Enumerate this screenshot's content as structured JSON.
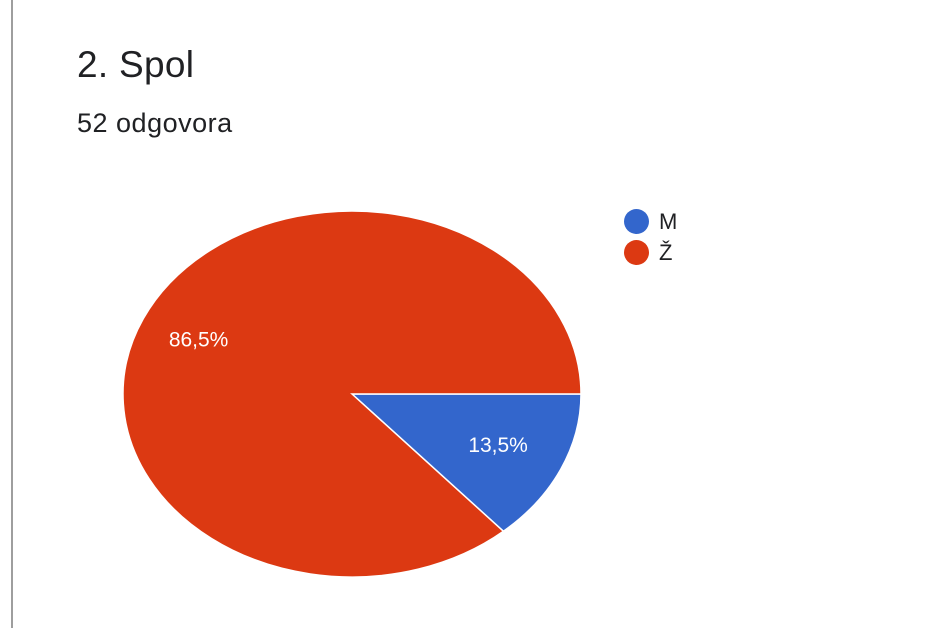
{
  "question": {
    "title": "2. Spol",
    "response_count": "52 odgovora"
  },
  "colors": {
    "blue": "#3366cc",
    "red": "#dc3912"
  },
  "chart_data": {
    "type": "pie",
    "slices": [
      {
        "label": "M",
        "value": 13.5,
        "display": "13,5%",
        "color": "#3366cc"
      },
      {
        "label": "Ž",
        "value": 86.5,
        "display": "86,5%",
        "color": "#dc3912"
      }
    ],
    "legend_position": "right"
  }
}
